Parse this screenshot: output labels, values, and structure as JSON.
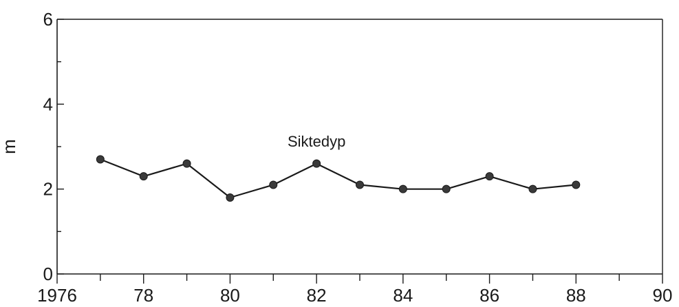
{
  "chart_data": {
    "type": "line",
    "title": "",
    "xlabel": "",
    "ylabel": "m",
    "xlim": [
      1976,
      1990
    ],
    "ylim": [
      0,
      6
    ],
    "x_ticks": [
      {
        "value": 1976,
        "label": "1976"
      },
      {
        "value": 1978,
        "label": "78"
      },
      {
        "value": 1980,
        "label": "80"
      },
      {
        "value": 1982,
        "label": "82"
      },
      {
        "value": 1984,
        "label": "84"
      },
      {
        "value": 1986,
        "label": "86"
      },
      {
        "value": 1988,
        "label": "88"
      },
      {
        "value": 1990,
        "label": "90"
      }
    ],
    "x_minor_ticks": [
      1977,
      1979,
      1981,
      1983,
      1985,
      1987,
      1989
    ],
    "y_ticks": [
      {
        "value": 0,
        "label": "0"
      },
      {
        "value": 2,
        "label": "2"
      },
      {
        "value": 4,
        "label": "4"
      },
      {
        "value": 6,
        "label": "6"
      }
    ],
    "y_minor_ticks": [
      1,
      3,
      5
    ],
    "grid": false,
    "series": [
      {
        "name": "Siktedyp",
        "x": [
          1977,
          1978,
          1979,
          1980,
          1981,
          1982,
          1983,
          1984,
          1985,
          1986,
          1987,
          1988
        ],
        "values": [
          2.7,
          2.3,
          2.6,
          1.8,
          2.1,
          2.6,
          2.1,
          2.0,
          2.0,
          2.3,
          2.0,
          2.1
        ]
      }
    ],
    "annotations": [
      {
        "text": "Siktedyp",
        "x": 1982,
        "y": 3.0
      }
    ]
  }
}
